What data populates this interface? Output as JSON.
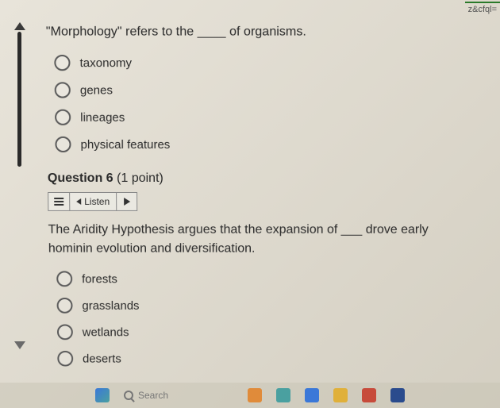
{
  "url_fragment": "z&cfql=",
  "question5": {
    "prompt": "\"Morphology\" refers to the ____ of organisms.",
    "options": [
      "taxonomy",
      "genes",
      "lineages",
      "physical features"
    ]
  },
  "question6": {
    "header_label": "Question 6",
    "points_label": "(1 point)",
    "listen_label": "Listen",
    "prompt": "The Aridity Hypothesis argues that the expansion of ___ drove early hominin evolution and diversification.",
    "options": [
      "forests",
      "grasslands",
      "wetlands",
      "deserts"
    ]
  },
  "taskbar": {
    "search_placeholder": "Search"
  },
  "colors": {
    "icon_blue": "#3b78d8",
    "icon_orange": "#e08b3a",
    "icon_green": "#4aa84a",
    "icon_red": "#c74b3b",
    "icon_teal": "#4aa0a0",
    "icon_navy": "#2a4b8d"
  }
}
